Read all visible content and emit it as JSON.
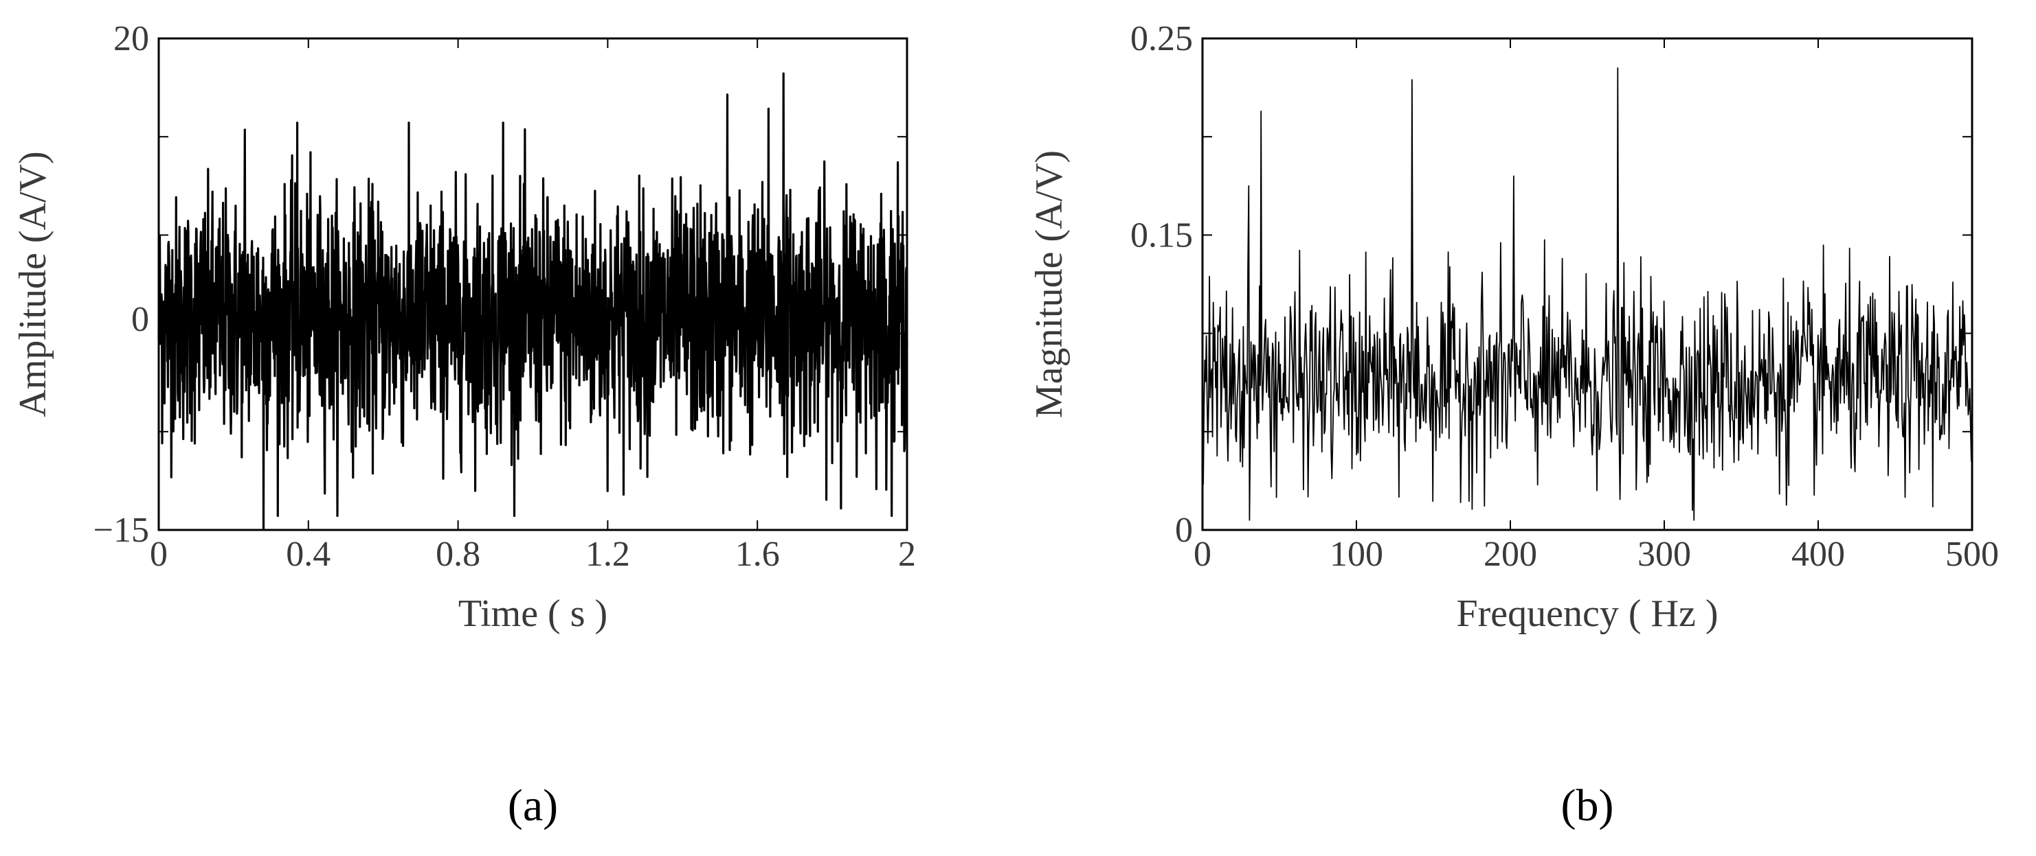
{
  "chart_data": [
    {
      "type": "line",
      "panel_label": "(a)",
      "xlabel": "Time ( s )",
      "ylabel": "Amplitude (A/V)",
      "xlim": [
        0,
        2
      ],
      "ylim": [
        -15,
        20
      ],
      "xticks": [
        "0",
        "0.4",
        "0.8",
        "1.2",
        "1.6",
        "2"
      ],
      "yticks": [
        "20",
        "0",
        "−15"
      ],
      "grid": false,
      "signal": {
        "description": "dense noise signal",
        "x_range": [
          0,
          2
        ],
        "typical_range": [
          -9,
          9
        ],
        "envelope_range": [
          -14,
          14
        ],
        "max_peak": {
          "x": 1.67,
          "y": 17.5
        },
        "min_peak": {
          "x": 0.28,
          "y": -15
        },
        "notable_peaks": [
          {
            "x": 1.52,
            "y": 16
          },
          {
            "x": 1.63,
            "y": 15
          },
          {
            "x": 0.37,
            "y": 14
          },
          {
            "x": 0.92,
            "y": 14
          },
          {
            "x": 0.23,
            "y": 13.5
          }
        ]
      },
      "color": "#000000"
    },
    {
      "type": "line",
      "panel_label": "(b)",
      "xlabel": "Frequency ( Hz )",
      "ylabel": "Magnitude (A/V)",
      "xlim": [
        0,
        500
      ],
      "ylim": [
        0,
        0.25
      ],
      "xticks": [
        "0",
        "100",
        "200",
        "300",
        "400",
        "500"
      ],
      "yticks": [
        "0.25",
        "0.15",
        "0"
      ],
      "grid": false,
      "signal": {
        "description": "noise spectrum",
        "x_range": [
          0,
          500
        ],
        "typical_range": [
          0.02,
          0.13
        ],
        "peaks": [
          {
            "x": 38,
            "y": 0.213
          },
          {
            "x": 136,
            "y": 0.229
          },
          {
            "x": 270,
            "y": 0.235
          },
          {
            "x": 202,
            "y": 0.18
          },
          {
            "x": 30,
            "y": 0.175
          }
        ]
      },
      "color": "#000000"
    }
  ]
}
